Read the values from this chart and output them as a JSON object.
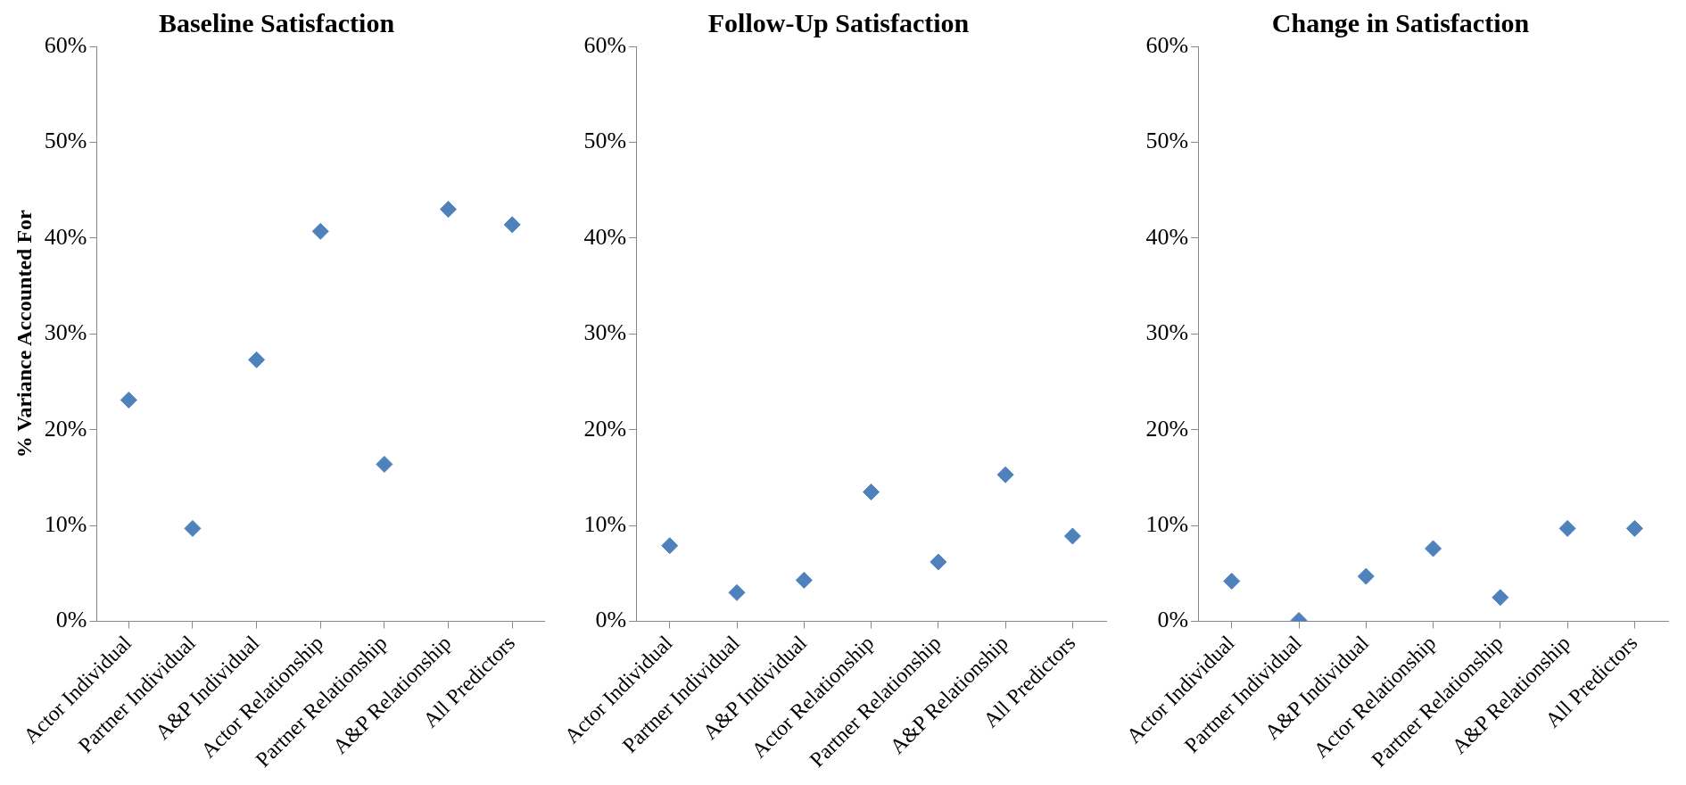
{
  "chart_data": [
    {
      "type": "scatter",
      "title": "Baseline Satisfaction",
      "ylabel": "% Variance Accounted For",
      "categories": [
        "Actor Individual",
        "Partner Individual",
        "A&P Individual",
        "Actor Relationship",
        "Partner Relationship",
        "A&P Relationship",
        "All Predictors"
      ],
      "values": [
        23.1,
        9.7,
        27.3,
        40.7,
        16.4,
        43.0,
        41.4
      ],
      "color": "#4f81bd",
      "marker": "diamond",
      "ylim": [
        0,
        60
      ],
      "yticks": [
        {
          "value": 0,
          "label": "0%"
        },
        {
          "value": 10,
          "label": "10%"
        },
        {
          "value": 20,
          "label": "20%"
        },
        {
          "value": 30,
          "label": "30%"
        },
        {
          "value": 40,
          "label": "40%"
        },
        {
          "value": 50,
          "label": "50%"
        },
        {
          "value": 60,
          "label": "60%"
        }
      ]
    },
    {
      "type": "scatter",
      "title": "Follow-Up Satisfaction",
      "categories": [
        "Actor Individual",
        "Partner Individual",
        "A&P Individual",
        "Actor Relationship",
        "Partner Relationship",
        "A&P Relationship",
        "All Predictors"
      ],
      "values": [
        7.9,
        3.0,
        4.3,
        13.5,
        6.2,
        15.3,
        8.9
      ],
      "color": "#4f81bd",
      "marker": "diamond",
      "ylim": [
        0,
        60
      ],
      "yticks": [
        {
          "value": 0,
          "label": "0%"
        },
        {
          "value": 10,
          "label": "10%"
        },
        {
          "value": 20,
          "label": "20%"
        },
        {
          "value": 30,
          "label": "30%"
        },
        {
          "value": 40,
          "label": "40%"
        },
        {
          "value": 50,
          "label": "50%"
        },
        {
          "value": 60,
          "label": "60%"
        }
      ]
    },
    {
      "type": "scatter",
      "title": "Change in Satisfaction",
      "categories": [
        "Actor Individual",
        "Partner Individual",
        "A&P Individual",
        "Actor Relationship",
        "Partner Relationship",
        "A&P Relationship",
        "All Predictors"
      ],
      "values": [
        4.2,
        0.1,
        4.7,
        7.6,
        2.5,
        9.7,
        9.7
      ],
      "color": "#4f81bd",
      "marker": "diamond",
      "ylim": [
        0,
        60
      ],
      "yticks": [
        {
          "value": 0,
          "label": "0%"
        },
        {
          "value": 10,
          "label": "10%"
        },
        {
          "value": 20,
          "label": "20%"
        },
        {
          "value": 30,
          "label": "30%"
        },
        {
          "value": 40,
          "label": "40%"
        },
        {
          "value": 50,
          "label": "50%"
        },
        {
          "value": 60,
          "label": "60%"
        }
      ]
    }
  ]
}
